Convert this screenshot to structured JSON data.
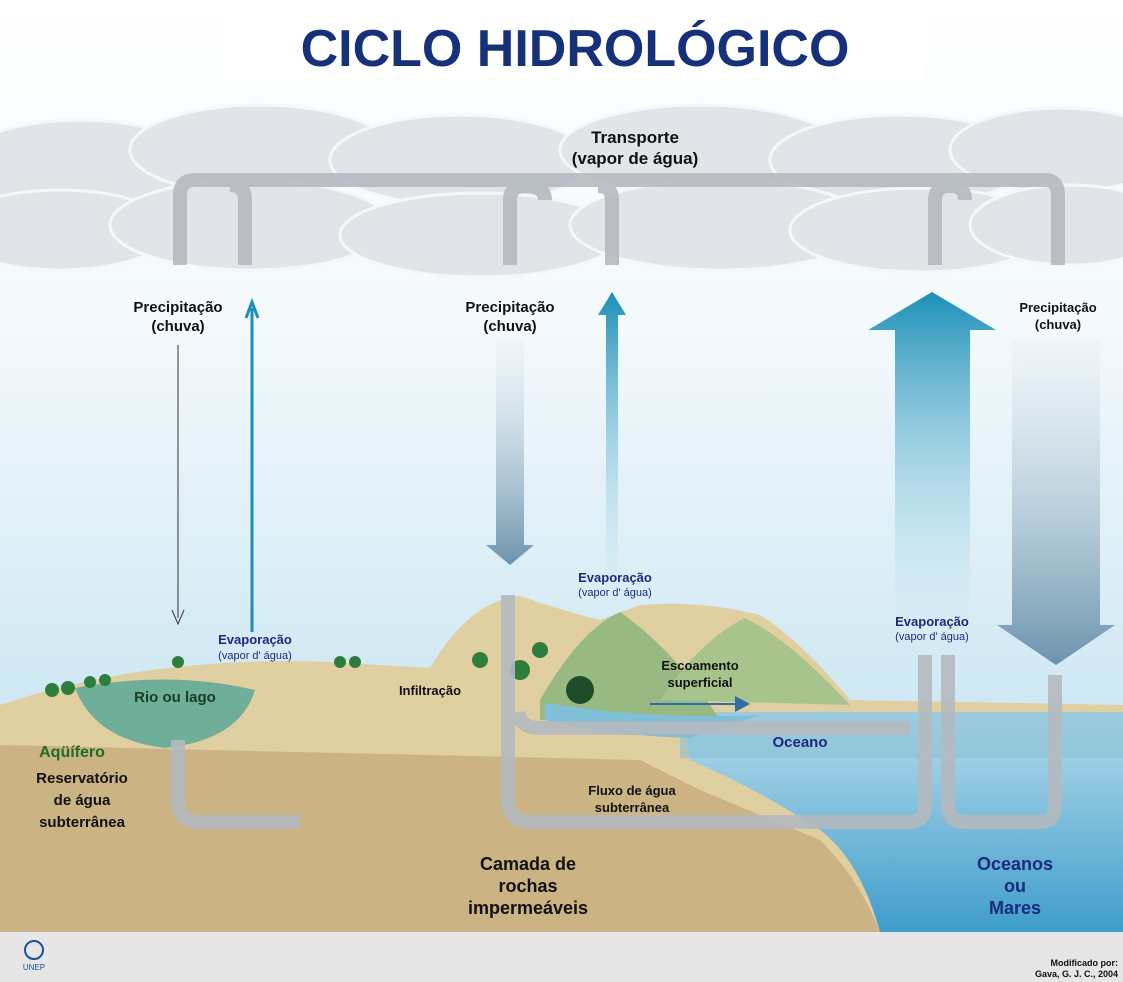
{
  "title": "CICLO HIDROLÓGICO",
  "labels": {
    "transport": [
      "Transporte",
      "(vapor de água)"
    ],
    "precipitation_left": [
      "Precipitação",
      "(chuva)"
    ],
    "precipitation_center": [
      "Precipitação",
      "(chuva)"
    ],
    "precipitation_right": [
      "Precipitação",
      "(chuva)"
    ],
    "evaporation_left": [
      "Evaporação",
      "(vapor d' água)"
    ],
    "evaporation_center": [
      "Evaporação",
      "(vapor d' água)"
    ],
    "evaporation_right": [
      "Evaporação",
      "(vapor d' água)"
    ],
    "river_lake": "Rio ou lago",
    "infiltration": "Infiltração",
    "runoff": [
      "Escoamento",
      "superficial"
    ],
    "ocean": "Oceano",
    "aquifer": "Aqüífero",
    "reservoir": [
      "Reservatório",
      "de água",
      "subterrânea"
    ],
    "groundwater_flow": [
      "Fluxo de água",
      "subterrânea"
    ],
    "rock_layer": [
      "Camada de",
      "rochas",
      "impermeáveis"
    ],
    "oceans_seas": [
      "Oceanos",
      "ou",
      "Mares"
    ]
  },
  "footer": {
    "logo": "UNEP",
    "credit": [
      "Modificado por:",
      "Gava, G. J. C., 2004"
    ]
  }
}
